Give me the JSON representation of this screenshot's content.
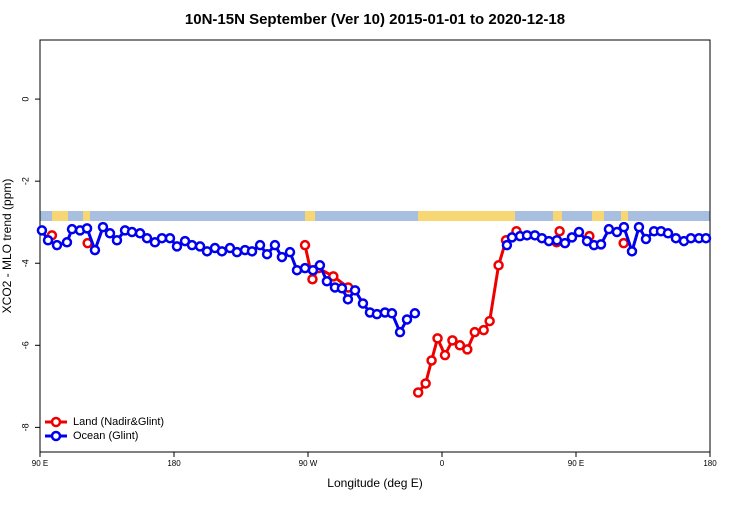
{
  "chart_data": {
    "type": "line",
    "title": "10N-15N September (Ver 10)   2015-01-01 to 2020-12-18",
    "xlabel": "Longitude (deg E)",
    "ylabel": "XCO2 - MLO trend (ppm)",
    "xlim": [
      90,
      540
    ],
    "xticks": [
      {
        "value": 90,
        "label": "90 E"
      },
      {
        "value": 180,
        "label": "180"
      },
      {
        "value": 270,
        "label": "90 W"
      },
      {
        "value": 360,
        "label": "0"
      },
      {
        "value": 450,
        "label": "90 E"
      },
      {
        "value": 540,
        "label": "180"
      }
    ],
    "ylim": [
      -8.6,
      1.44
    ],
    "yticks": [
      0,
      -2,
      -4,
      -6,
      -8
    ],
    "legend": "bottom-left",
    "series": [
      {
        "name": "Land (Nadir&Glint)",
        "color": "#ee0000",
        "x": [
          98,
          110,
          122,
          200,
          268,
          273,
          277,
          287,
          297,
          320,
          344,
          349,
          353,
          357,
          362,
          367,
          372,
          377,
          382,
          388,
          392,
          398,
          403,
          410,
          425,
          437,
          438,
          439,
          450,
          459,
          470,
          482
        ],
        "values": [
          -3.32,
          null,
          -3.51,
          null,
          -3.56,
          -4.39,
          -4.12,
          -4.32,
          -4.59,
          null,
          -7.15,
          -6.93,
          -6.37,
          -5.83,
          -6.24,
          -5.88,
          -6.0,
          -6.1,
          -5.68,
          -5.63,
          -5.41,
          -4.05,
          -3.44,
          -3.22,
          null,
          -3.49,
          null,
          -3.22,
          null,
          -3.34,
          null,
          -3.51
        ]
      },
      {
        "name": "Ocean (Glint)",
        "color": "#0000ee",
        "x": [
          91.3,
          95.4,
          101.4,
          108.1,
          111.5,
          116.9,
          121.6,
          126.9,
          132.3,
          137,
          141.7,
          147.1,
          151.8,
          157.2,
          161.9,
          167.2,
          171.9,
          177.3,
          182,
          187.4,
          192.1,
          197.5,
          202.2,
          207.5,
          212.2,
          217.6,
          222.3,
          227.7,
          232.4,
          237.8,
          242.5,
          247.8,
          252.5,
          257.9,
          262.6,
          268,
          273.3,
          278,
          282.7,
          288.1,
          292.8,
          296.8,
          301.6,
          306.9,
          311.6,
          316.3,
          321.7,
          326.4,
          331.8,
          336.5,
          341.8,
          370,
          403.6,
          407,
          412.4,
          417.1,
          422.4,
          427.1,
          431.8,
          437.2,
          442.6,
          447.3,
          452,
          457.4,
          462.1,
          466.8,
          472.1,
          477.5,
          482.2,
          487.6,
          492.3,
          497,
          502.4,
          507.1,
          511.8,
          517.1,
          522.5,
          527.2,
          532.6,
          537.3
        ],
        "values": [
          -3.2,
          -3.44,
          -3.56,
          -3.49,
          -3.17,
          -3.2,
          -3.15,
          -3.68,
          -3.12,
          -3.27,
          -3.44,
          -3.2,
          -3.24,
          -3.27,
          -3.39,
          -3.49,
          -3.39,
          -3.39,
          -3.59,
          -3.46,
          -3.56,
          -3.59,
          -3.71,
          -3.63,
          -3.71,
          -3.63,
          -3.73,
          -3.68,
          -3.71,
          -3.56,
          -3.78,
          -3.56,
          -3.85,
          -3.73,
          -4.17,
          -4.12,
          -4.17,
          -4.05,
          -4.44,
          -4.59,
          -4.61,
          -4.88,
          -4.66,
          -4.98,
          -5.2,
          -5.24,
          -5.2,
          -5.22,
          -5.68,
          -5.37,
          -5.22,
          null,
          -3.56,
          -3.37,
          -3.34,
          -3.32,
          -3.32,
          -3.39,
          -3.46,
          -3.44,
          -3.51,
          -3.37,
          -3.24,
          -3.46,
          -3.56,
          -3.54,
          -3.17,
          -3.24,
          -3.12,
          -3.71,
          -3.12,
          -3.41,
          -3.22,
          -3.22,
          -3.27,
          -3.39,
          -3.46,
          -3.39,
          -3.39,
          -3.39
        ]
      }
    ]
  }
}
